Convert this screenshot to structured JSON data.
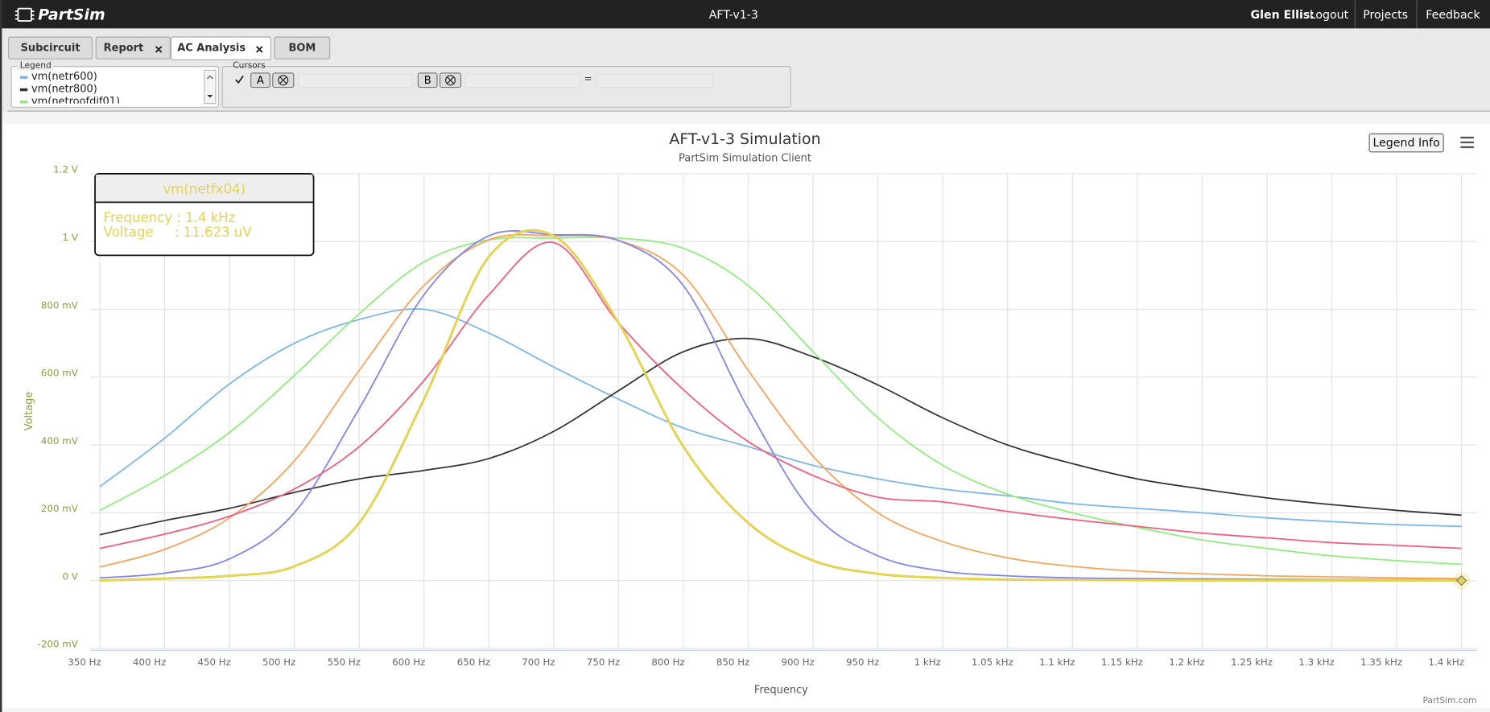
{
  "header": {
    "logo": "PartSim",
    "title": "AFT-v1-3",
    "user": "Glen Ellis:",
    "logout": "Logout",
    "nav": [
      "Projects",
      "Feedback"
    ]
  },
  "tabs": [
    "Subcircuit",
    "Report",
    "AC Analysis",
    "BOM"
  ],
  "legend_panel": {
    "title": "Legend"
  },
  "cursors": {
    "title": "Cursors",
    "a": "A",
    "b": "B",
    "equals": "="
  },
  "tooltip": {
    "lines": [
      "Frequency : 1.4 kHz",
      "Voltage     : 11.623 uV"
    ]
  },
  "chart_data": {
    "type": "line",
    "title": "AFT-v1-3 Simulation",
    "subtitle": "PartSim Simulation Client",
    "xlabel": "Frequency",
    "ylabel": "Voltage",
    "button": "Legend Info",
    "credit": "PartSim.com",
    "grid": true,
    "x": [
      350,
      400,
      450,
      500,
      550,
      600,
      650,
      700,
      750,
      800,
      850,
      900,
      950,
      1000,
      1050,
      1100,
      1150,
      1200,
      1250,
      1300,
      1350,
      1400
    ],
    "xlim": [
      350,
      1400
    ],
    "xticks": [
      {
        "value": 350,
        "label": "350 Hz"
      },
      {
        "value": 400,
        "label": "400 Hz"
      },
      {
        "value": 450,
        "label": "450 Hz"
      },
      {
        "value": 500,
        "label": "500 Hz"
      },
      {
        "value": 550,
        "label": "550 Hz"
      },
      {
        "value": 600,
        "label": "600 Hz"
      },
      {
        "value": 650,
        "label": "650 Hz"
      },
      {
        "value": 700,
        "label": "700 Hz"
      },
      {
        "value": 750,
        "label": "750 Hz"
      },
      {
        "value": 800,
        "label": "800 Hz"
      },
      {
        "value": 850,
        "label": "850 Hz"
      },
      {
        "value": 900,
        "label": "900 Hz"
      },
      {
        "value": 950,
        "label": "950 Hz"
      },
      {
        "value": 1000,
        "label": "1 kHz"
      },
      {
        "value": 1050,
        "label": "1.05 kHz"
      },
      {
        "value": 1100,
        "label": "1.1 kHz"
      },
      {
        "value": 1150,
        "label": "1.15 kHz"
      },
      {
        "value": 1200,
        "label": "1.2 kHz"
      },
      {
        "value": 1250,
        "label": "1.25 kHz"
      },
      {
        "value": 1300,
        "label": "1.3 kHz"
      },
      {
        "value": 1350,
        "label": "1.35 kHz"
      },
      {
        "value": 1400,
        "label": "1.4 kHz"
      }
    ],
    "ylim": [
      -0.2,
      1.2
    ],
    "yticks": [
      {
        "value": -0.2,
        "label": "-200 mV"
      },
      {
        "value": 0,
        "label": "0 V"
      },
      {
        "value": 0.2,
        "label": "200 mV"
      },
      {
        "value": 0.4,
        "label": "400 mV"
      },
      {
        "value": 0.6,
        "label": "600 mV"
      },
      {
        "value": 0.8,
        "label": "800 mV"
      },
      {
        "value": 1,
        "label": "1 V"
      },
      {
        "value": 1.2,
        "label": "1.2 V"
      }
    ],
    "series": [
      {
        "name": "vm(netr600)",
        "color": "#7cb5ec",
        "values": [
          0.277,
          0.42,
          0.58,
          0.7,
          0.77,
          0.8,
          0.73,
          0.63,
          0.535,
          0.45,
          0.395,
          0.34,
          0.3,
          0.27,
          0.25,
          0.227,
          0.213,
          0.2,
          0.185,
          0.174,
          0.165,
          0.16
        ]
      },
      {
        "name": "vm(netr800)",
        "color": "#333333",
        "values": [
          0.135,
          0.177,
          0.213,
          0.26,
          0.3,
          0.325,
          0.36,
          0.44,
          0.56,
          0.675,
          0.714,
          0.66,
          0.577,
          0.48,
          0.4,
          0.345,
          0.3,
          0.27,
          0.244,
          0.224,
          0.207,
          0.193
        ]
      },
      {
        "name": "vm(netroofdif01)",
        "color": "#90ed7d",
        "values": [
          0.207,
          0.31,
          0.437,
          0.605,
          0.787,
          0.94,
          1.005,
          1.01,
          1.01,
          0.98,
          0.87,
          0.675,
          0.48,
          0.34,
          0.255,
          0.2,
          0.157,
          0.12,
          0.095,
          0.073,
          0.059,
          0.048
        ]
      },
      {
        "color": "#f7a35c",
        "values": [
          0.04,
          0.092,
          0.185,
          0.353,
          0.62,
          0.87,
          1.005,
          1.017,
          1.003,
          0.9,
          0.62,
          0.367,
          0.2,
          0.115,
          0.067,
          0.042,
          0.028,
          0.02,
          0.014,
          0.011,
          0.008,
          0.006
        ]
      },
      {
        "color": "#8085e9",
        "values": [
          0.008,
          0.022,
          0.064,
          0.2,
          0.507,
          0.843,
          1.017,
          1.02,
          1.003,
          0.87,
          0.507,
          0.2,
          0.073,
          0.028,
          0.014,
          0.008,
          0.006,
          0.005,
          0.004,
          0.003,
          0.003,
          0.002
        ]
      },
      {
        "color": "#f15c80",
        "values": [
          0.095,
          0.137,
          0.19,
          0.27,
          0.395,
          0.59,
          0.843,
          0.997,
          0.76,
          0.563,
          0.41,
          0.31,
          0.246,
          0.232,
          0.204,
          0.18,
          0.16,
          0.14,
          0.126,
          0.112,
          0.104,
          0.095
        ]
      },
      {
        "name": "vm(netfx04)",
        "color": "#e4d354",
        "values": [
          0.0,
          0.006,
          0.014,
          0.042,
          0.17,
          0.535,
          0.955,
          1.017,
          0.76,
          0.395,
          0.17,
          0.059,
          0.02,
          0.008,
          0.003,
          0.002,
          0.001,
          0.0005,
          0.0002,
          0.0001,
          5e-05,
          1.16e-05
        ]
      }
    ]
  }
}
